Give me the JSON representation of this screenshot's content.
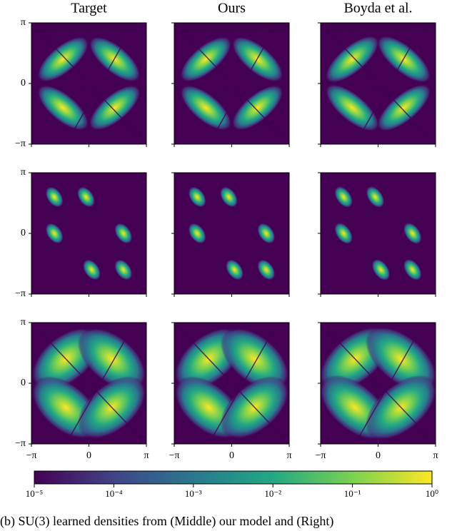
{
  "chart_data": {
    "type": "heatmap-grid",
    "columns": [
      "Target",
      "Ours",
      "Boyda et al."
    ],
    "rows": 3,
    "xlim": [
      -3.141592653589793,
      3.141592653589793
    ],
    "ylim": [
      -3.141592653589793,
      3.141592653589793
    ],
    "xticks": [
      {
        "value": -3.141592653589793,
        "label": "−π"
      },
      0,
      {
        "value": 3.141592653589793,
        "label": "π"
      }
    ],
    "yticks": [
      {
        "value": -3.141592653589793,
        "label": "−π"
      },
      0,
      {
        "value": 3.141592653589793,
        "label": "π"
      }
    ],
    "colorbar": {
      "scale": "log",
      "lim": [
        1e-05,
        1
      ],
      "ticks": [
        {
          "value": 1e-05,
          "label": "10⁻⁵"
        },
        {
          "value": 0.0001,
          "label": "10⁻⁴"
        },
        {
          "value": 0.001,
          "label": "10⁻³"
        },
        {
          "value": 0.01,
          "label": "10⁻²"
        },
        {
          "value": 0.1,
          "label": "10⁻¹"
        },
        {
          "value": 1,
          "label": "10⁰"
        }
      ]
    },
    "caption": "(b) SU(3) learned densities from (Middle) our model and (Right)"
  }
}
